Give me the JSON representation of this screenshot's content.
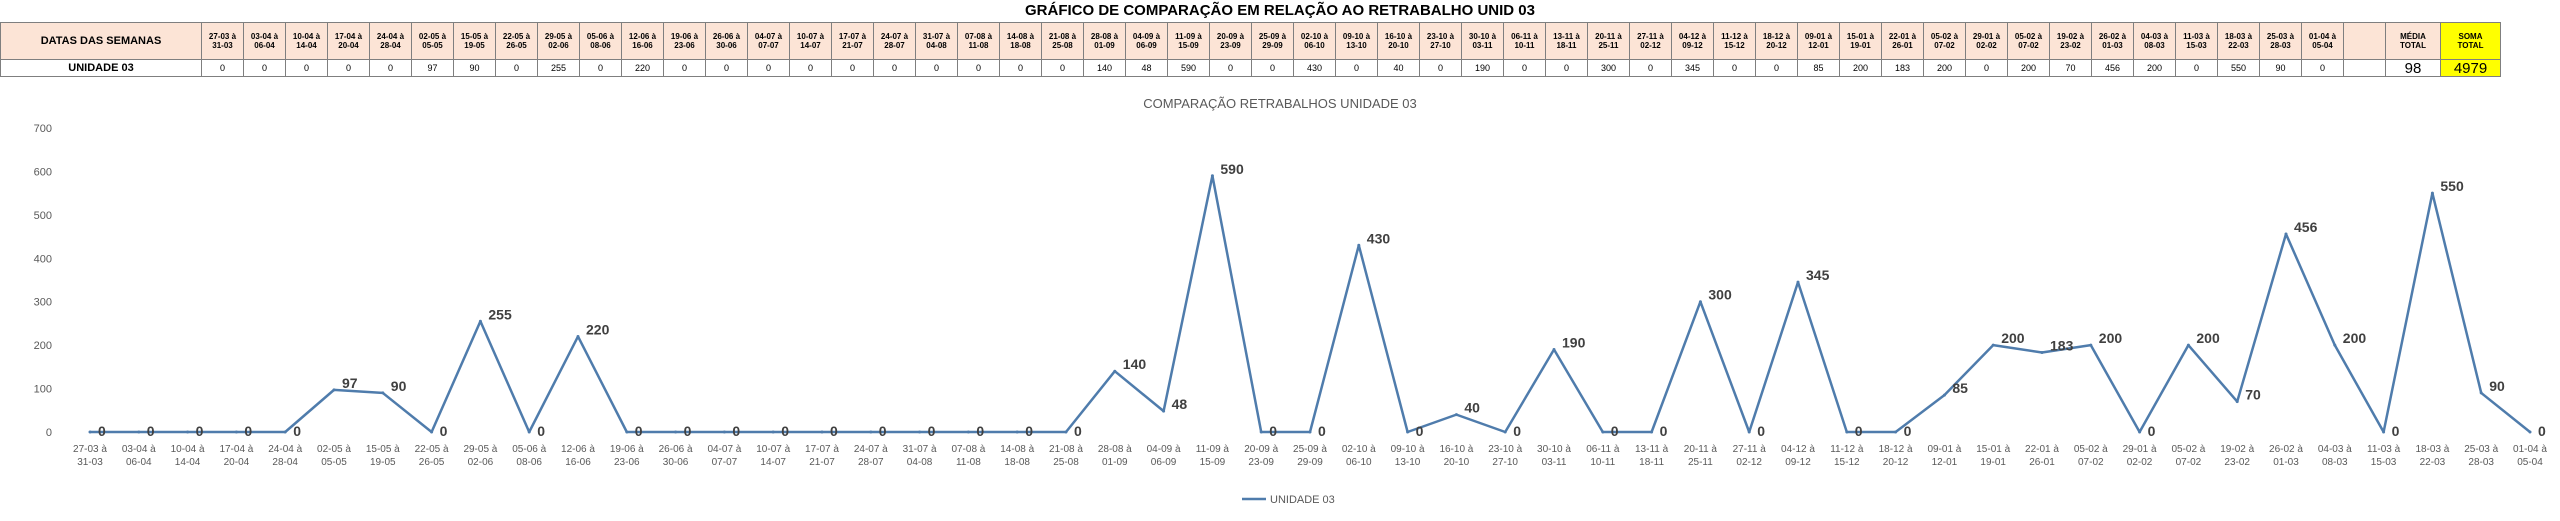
{
  "title": "GRÁFICO DE COMPARAÇÃO EM RELAÇÃO AO RETRABALHO UNID 03",
  "table": {
    "header_label": "DATAS DAS SEMANAS",
    "row_label": "UNIDADE 03",
    "weeks": [
      "27-03 à\n31-03",
      "03-04 à\n06-04",
      "10-04 à\n14-04",
      "17-04 à\n20-04",
      "24-04 à\n28-04",
      "02-05 à\n05-05",
      "15-05 à\n19-05",
      "22-05 à\n26-05",
      "29-05 à\n02-06",
      "05-06 à\n08-06",
      "12-06 à\n16-06",
      "19-06 à\n23-06",
      "26-06 à\n30-06",
      "04-07 à\n07-07",
      "10-07 à\n14-07",
      "17-07 à\n21-07",
      "24-07 à\n28-07",
      "31-07 à\n04-08",
      "07-08 à\n11-08",
      "14-08 à\n18-08",
      "21-08 à\n25-08",
      "28-08 à\n01-09",
      "04-09 à\n06-09",
      "11-09 à\n15-09",
      "20-09 à\n23-09",
      "25-09 à\n29-09",
      "02-10 à\n06-10",
      "09-10 à\n13-10",
      "16-10 à\n20-10",
      "23-10 à\n27-10",
      "30-10 à\n03-11",
      "06-11 à\n10-11",
      "13-11 à\n18-11",
      "20-11 à\n25-11",
      "27-11 à\n02-12",
      "04-12 à\n09-12",
      "11-12 à\n15-12",
      "18-12 à\n20-12",
      "09-01 à\n12-01",
      "15-01 à\n19-01",
      "22-01 à\n26-01",
      "05-02 à\n07-02",
      "29-01 à\n02-02",
      "05-02 à\n07-02",
      "19-02 à\n23-02",
      "26-02 à\n01-03",
      "04-03 à\n08-03",
      "11-03 à\n15-03",
      "18-03 à\n22-03",
      "25-03 à\n28-03",
      "01-04 à\n05-04",
      ""
    ],
    "values": [
      "0",
      "0",
      "0",
      "0",
      "0",
      "97",
      "90",
      "0",
      "255",
      "0",
      "220",
      "0",
      "0",
      "0",
      "0",
      "0",
      "0",
      "0",
      "0",
      "0",
      "0",
      "140",
      "48",
      "590",
      "0",
      "0",
      "430",
      "0",
      "40",
      "0",
      "190",
      "0",
      "0",
      "300",
      "0",
      "345",
      "0",
      "0",
      "85",
      "200",
      "183",
      "200",
      "0",
      "200",
      "70",
      "456",
      "200",
      "0",
      "550",
      "90",
      "0",
      ""
    ],
    "media_label": "MÉDIA\nTOTAL",
    "media_value": "98",
    "soma_label": "SOMA\nTOTAL",
    "soma_value": "4979"
  },
  "chart_data": {
    "type": "line",
    "title": "COMPARAÇÃO RETRABALHOS UNIDADE 03",
    "categories": [
      "27-03 à\n31-03",
      "03-04 à\n06-04",
      "10-04 à\n14-04",
      "17-04 à\n20-04",
      "24-04 à\n28-04",
      "02-05 à\n05-05",
      "15-05 à\n19-05",
      "22-05 à\n26-05",
      "29-05 à\n02-06",
      "05-06 à\n08-06",
      "12-06 à\n16-06",
      "19-06 à\n23-06",
      "26-06 à\n30-06",
      "04-07 à\n07-07",
      "10-07 à\n14-07",
      "17-07 à\n21-07",
      "24-07 à\n28-07",
      "31-07 à\n04-08",
      "07-08 à\n11-08",
      "14-08 à\n18-08",
      "21-08 à\n25-08",
      "28-08 à\n01-09",
      "04-09 à\n06-09",
      "11-09 à\n15-09",
      "20-09 à\n23-09",
      "25-09 à\n29-09",
      "02-10 à\n06-10",
      "09-10 à\n13-10",
      "16-10 à\n20-10",
      "23-10 à\n27-10",
      "30-10 à\n03-11",
      "06-11 à\n10-11",
      "13-11 à\n18-11",
      "20-11 à\n25-11",
      "27-11 à\n02-12",
      "04-12 à\n09-12",
      "11-12 à\n15-12",
      "18-12 à\n20-12",
      "09-01 à\n12-01",
      "15-01 à\n19-01",
      "22-01 à\n26-01",
      "05-02 à\n07-02",
      "29-01 à\n02-02",
      "05-02 à\n07-02",
      "19-02 à\n23-02",
      "26-02 à\n01-03",
      "04-03 à\n08-03",
      "11-03 à\n15-03",
      "18-03 à\n22-03",
      "25-03 à\n28-03",
      "01-04 à\n05-04"
    ],
    "series": [
      {
        "name": "UNIDADE 03",
        "color": "#4f7cac",
        "values": [
          0,
          0,
          0,
          0,
          0,
          97,
          90,
          0,
          255,
          0,
          220,
          0,
          0,
          0,
          0,
          0,
          0,
          0,
          0,
          0,
          0,
          140,
          48,
          590,
          0,
          0,
          430,
          0,
          40,
          0,
          190,
          0,
          0,
          300,
          0,
          345,
          0,
          0,
          85,
          200,
          183,
          200,
          0,
          200,
          70,
          456,
          200,
          0,
          550,
          90,
          0
        ]
      }
    ],
    "ylim": [
      0,
      700
    ],
    "yticks": [
      0,
      100,
      200,
      300,
      400,
      500,
      600,
      700
    ],
    "grid": false,
    "legend": "bottom"
  }
}
